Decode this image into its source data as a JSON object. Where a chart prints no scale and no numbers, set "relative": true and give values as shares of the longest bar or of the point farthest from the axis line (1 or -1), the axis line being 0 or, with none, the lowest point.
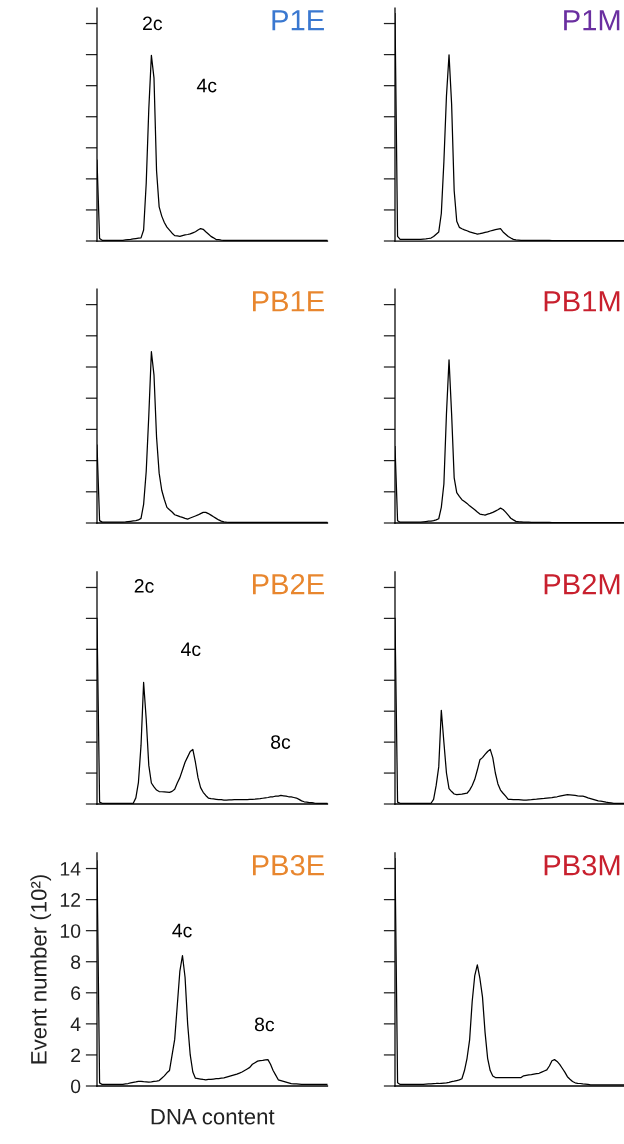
{
  "chart_data": [
    {
      "type": "line",
      "title": "P1E",
      "color": "#000000",
      "annotations": [
        "2c",
        "4c"
      ],
      "relative": true,
      "tick_labels": false,
      "categories": [
        null,
        null,
        null,
        null,
        null,
        null,
        null,
        null,
        null,
        null,
        null,
        null,
        null,
        null,
        null,
        null,
        null,
        null,
        null,
        null,
        null,
        null,
        null,
        null,
        null,
        null,
        null,
        null,
        null,
        null,
        null,
        null,
        null,
        null,
        null,
        null,
        null,
        null,
        null,
        null,
        null,
        null,
        null,
        null,
        null,
        null,
        null,
        null,
        null,
        null,
        null,
        null,
        null,
        null,
        null,
        null,
        null,
        null,
        null,
        null,
        null,
        null,
        null,
        null,
        null,
        null,
        null,
        null,
        null,
        null,
        null,
        null,
        null,
        null,
        null,
        null,
        null,
        null,
        null,
        null,
        null,
        null,
        null,
        null,
        null,
        null,
        null,
        null,
        null,
        null
      ],
      "values": [
        0.435,
        0.013,
        0.004,
        0.004,
        0.004,
        0.004,
        0.004,
        0.004,
        0.004,
        0.004,
        0.004,
        0.006,
        0.008,
        0.009,
        0.011,
        0.013,
        0.015,
        0.017,
        0.059,
        0.31,
        0.711,
        1,
        0.879,
        0.377,
        0.184,
        0.134,
        0.1,
        0.075,
        0.059,
        0.042,
        0.029,
        0.027,
        0.025,
        0.029,
        0.033,
        0.035,
        0.038,
        0.044,
        0.05,
        0.059,
        0.067,
        0.063,
        0.05,
        0.038,
        0.025,
        0.017,
        0.008,
        0.007,
        0.005,
        0.004,
        0.003,
        0.003,
        0.003,
        0.003,
        0.003,
        0.003,
        0.003,
        0.003,
        0.003,
        0.003,
        0.003,
        0.003,
        0.003,
        0.003,
        0.003,
        0.003,
        0.003,
        0.003,
        0.003,
        0.003,
        0.003,
        0.003,
        0.003,
        0.003,
        0.003,
        0.003,
        0.003,
        0.003,
        0.003,
        0.003,
        0.003,
        0.003,
        0.003,
        0.003,
        0.003,
        0.003,
        0.003,
        0.003,
        0.003,
        0.003
      ]
    },
    {
      "type": "line",
      "title": "P1M",
      "color": "#000000",
      "relative": true,
      "tick_labels": false,
      "categories": [
        null,
        null,
        null,
        null,
        null,
        null,
        null,
        null,
        null,
        null,
        null,
        null,
        null,
        null,
        null,
        null,
        null,
        null,
        null,
        null,
        null,
        null,
        null,
        null,
        null,
        null,
        null,
        null,
        null,
        null,
        null,
        null,
        null,
        null,
        null,
        null,
        null,
        null,
        null,
        null,
        null,
        null,
        null,
        null,
        null,
        null,
        null,
        null,
        null,
        null,
        null,
        null,
        null,
        null,
        null,
        null,
        null,
        null,
        null,
        null,
        null,
        null,
        null,
        null,
        null,
        null,
        null,
        null,
        null,
        null,
        null,
        null,
        null,
        null,
        null,
        null,
        null,
        null,
        null,
        null,
        null,
        null,
        null,
        null,
        null,
        null,
        null,
        null,
        null,
        null
      ],
      "values": [
        1,
        0.02,
        0.007,
        0.007,
        0.007,
        0.007,
        0.007,
        0.007,
        0.007,
        0.007,
        0.007,
        0.008,
        0.009,
        0.011,
        0.013,
        0.02,
        0.03,
        0.04,
        0.121,
        0.349,
        0.638,
        0.819,
        0.604,
        0.221,
        0.087,
        0.06,
        0.054,
        0.049,
        0.045,
        0.04,
        0.037,
        0.034,
        0.03,
        0.032,
        0.035,
        0.038,
        0.04,
        0.044,
        0.047,
        0.05,
        0.052,
        0.054,
        0.04,
        0.03,
        0.02,
        0.013,
        0.007,
        0.005,
        0.004,
        0.003,
        0.003,
        0.003,
        0.003,
        0.003,
        0.003,
        0.003,
        0.003,
        0.003,
        0.003,
        0.003,
        0.003,
        0.002,
        0.002,
        0.002,
        0.002,
        0.002,
        0.002,
        0.002,
        0.002,
        0.002,
        0.002,
        0.002,
        0.002,
        0.002,
        0.002,
        0.002,
        0.002,
        0.002,
        0.002,
        0.002,
        0.002,
        0.002,
        0.002,
        0.002,
        0.002,
        0.002,
        0.002,
        0.002,
        0.002,
        0.002
      ]
    },
    {
      "type": "line",
      "title": "PB1E",
      "color": "#000000",
      "relative": true,
      "tick_labels": false,
      "categories": [
        null,
        null,
        null,
        null,
        null,
        null,
        null,
        null,
        null,
        null,
        null,
        null,
        null,
        null,
        null,
        null,
        null,
        null,
        null,
        null,
        null,
        null,
        null,
        null,
        null,
        null,
        null,
        null,
        null,
        null,
        null,
        null,
        null,
        null,
        null,
        null,
        null,
        null,
        null,
        null,
        null,
        null,
        null,
        null,
        null,
        null,
        null,
        null,
        null,
        null,
        null,
        null,
        null,
        null,
        null,
        null,
        null,
        null,
        null,
        null,
        null,
        null,
        null,
        null,
        null,
        null,
        null,
        null,
        null,
        null,
        null,
        null,
        null,
        null,
        null,
        null,
        null,
        null,
        null,
        null,
        null,
        null,
        null,
        null,
        null,
        null,
        null,
        null,
        null,
        null
      ],
      "values": [
        0.455,
        0.014,
        0.005,
        0.005,
        0.005,
        0.005,
        0.005,
        0.005,
        0.005,
        0.005,
        0.005,
        0.006,
        0.008,
        0.01,
        0.012,
        0.014,
        0.018,
        0.027,
        0.109,
        0.301,
        0.628,
        1,
        0.865,
        0.501,
        0.291,
        0.191,
        0.137,
        0.091,
        0.077,
        0.064,
        0.048,
        0.043,
        0.037,
        0.033,
        0.027,
        0.023,
        0.029,
        0.035,
        0.041,
        0.047,
        0.055,
        0.062,
        0.062,
        0.055,
        0.046,
        0.036,
        0.027,
        0.018,
        0.011,
        0.007,
        0.005,
        0.004,
        0.004,
        0.004,
        0.004,
        0.004,
        0.004,
        0.004,
        0.004,
        0.004,
        0.004,
        0.003,
        0.003,
        0.003,
        0.003,
        0.003,
        0.003,
        0.003,
        0.003,
        0.003,
        0.003,
        0.003,
        0.003,
        0.003,
        0.003,
        0.003,
        0.003,
        0.003,
        0.003,
        0.003,
        0.003,
        0.003,
        0.003,
        0.003,
        0.003,
        0.003,
        0.003,
        0.003,
        0.003,
        0.003
      ]
    },
    {
      "type": "line",
      "title": "PB1M",
      "color": "#000000",
      "relative": true,
      "tick_labels": false,
      "categories": [
        null,
        null,
        null,
        null,
        null,
        null,
        null,
        null,
        null,
        null,
        null,
        null,
        null,
        null,
        null,
        null,
        null,
        null,
        null,
        null,
        null,
        null,
        null,
        null,
        null,
        null,
        null,
        null,
        null,
        null,
        null,
        null,
        null,
        null,
        null,
        null,
        null,
        null,
        null,
        null,
        null,
        null,
        null,
        null,
        null,
        null,
        null,
        null,
        null,
        null,
        null,
        null,
        null,
        null,
        null,
        null,
        null,
        null,
        null,
        null,
        null,
        null,
        null,
        null,
        null,
        null,
        null,
        null,
        null,
        null,
        null,
        null,
        null,
        null,
        null,
        null,
        null,
        null,
        null,
        null,
        null,
        null,
        null,
        null,
        null,
        null,
        null,
        null,
        null,
        null
      ],
      "values": [
        0.468,
        0.014,
        0.005,
        0.005,
        0.005,
        0.005,
        0.005,
        0.005,
        0.005,
        0.005,
        0.005,
        0.007,
        0.009,
        0.011,
        0.012,
        0.014,
        0.019,
        0.026,
        0.096,
        0.239,
        0.669,
        1,
        0.669,
        0.277,
        0.186,
        0.163,
        0.143,
        0.132,
        0.12,
        0.105,
        0.093,
        0.081,
        0.067,
        0.055,
        0.052,
        0.048,
        0.054,
        0.059,
        0.065,
        0.073,
        0.081,
        0.091,
        0.083,
        0.067,
        0.048,
        0.029,
        0.019,
        0.01,
        0.008,
        0.007,
        0.006,
        0.005,
        0.005,
        0.004,
        0.004,
        0.004,
        0.004,
        0.004,
        0.004,
        0.004,
        0.004,
        0.003,
        0.003,
        0.003,
        0.003,
        0.003,
        0.003,
        0.003,
        0.003,
        0.003,
        0.003,
        0.003,
        0.003,
        0.003,
        0.003,
        0.003,
        0.003,
        0.003,
        0.003,
        0.003,
        0.003,
        0.003,
        0.003,
        0.003,
        0.003,
        0.003,
        0.003,
        0.003,
        0.003,
        0.003
      ]
    },
    {
      "type": "line",
      "title": "PB2E",
      "color": "#000000",
      "annotations": [
        "2c",
        "4c",
        "8c"
      ],
      "relative": true,
      "tick_labels": false,
      "categories": [
        null,
        null,
        null,
        null,
        null,
        null,
        null,
        null,
        null,
        null,
        null,
        null,
        null,
        null,
        null,
        null,
        null,
        null,
        null,
        null,
        null,
        null,
        null,
        null,
        null,
        null,
        null,
        null,
        null,
        null,
        null,
        null,
        null,
        null,
        null,
        null,
        null,
        null,
        null,
        null,
        null,
        null,
        null,
        null,
        null,
        null,
        null,
        null,
        null,
        null,
        null,
        null,
        null,
        null,
        null,
        null,
        null,
        null,
        null,
        null,
        null,
        null,
        null,
        null,
        null,
        null,
        null,
        null,
        null,
        null,
        null,
        null,
        null,
        null,
        null,
        null,
        null,
        null,
        null,
        null,
        null,
        null,
        null,
        null,
        null,
        null,
        null,
        null,
        null,
        null
      ],
      "values": [
        1,
        0.01,
        0.004,
        0.004,
        0.004,
        0.004,
        0.004,
        0.004,
        0.004,
        0.004,
        0.004,
        0.004,
        0.004,
        0.004,
        0.004,
        0.033,
        0.117,
        0.317,
        0.655,
        0.458,
        0.208,
        0.113,
        0.092,
        0.075,
        0.067,
        0.066,
        0.065,
        0.064,
        0.063,
        0.068,
        0.079,
        0.113,
        0.142,
        0.183,
        0.225,
        0.254,
        0.283,
        0.294,
        0.225,
        0.142,
        0.088,
        0.063,
        0.046,
        0.032,
        0.029,
        0.027,
        0.025,
        0.023,
        0.023,
        0.021,
        0.021,
        0.022,
        0.022,
        0.023,
        0.023,
        0.023,
        0.023,
        0.024,
        0.024,
        0.025,
        0.025,
        0.026,
        0.028,
        0.029,
        0.031,
        0.033,
        0.035,
        0.038,
        0.039,
        0.042,
        0.043,
        0.046,
        0.044,
        0.042,
        0.039,
        0.038,
        0.035,
        0.032,
        0.025,
        0.017,
        0.012,
        0.01,
        0.008,
        0.007,
        0.005,
        0.004,
        0.004,
        0.004,
        0.004,
        0.004
      ]
    },
    {
      "type": "line",
      "title": "PB2M",
      "color": "#000000",
      "relative": true,
      "tick_labels": false,
      "categories": [
        null,
        null,
        null,
        null,
        null,
        null,
        null,
        null,
        null,
        null,
        null,
        null,
        null,
        null,
        null,
        null,
        null,
        null,
        null,
        null,
        null,
        null,
        null,
        null,
        null,
        null,
        null,
        null,
        null,
        null,
        null,
        null,
        null,
        null,
        null,
        null,
        null,
        null,
        null,
        null,
        null,
        null,
        null,
        null,
        null,
        null,
        null,
        null,
        null,
        null,
        null,
        null,
        null,
        null,
        null,
        null,
        null,
        null,
        null,
        null,
        null,
        null,
        null,
        null,
        null,
        null,
        null,
        null,
        null,
        null,
        null,
        null,
        null,
        null,
        null,
        null,
        null,
        null,
        null,
        null,
        null,
        null,
        null,
        null,
        null,
        null,
        null,
        null,
        null,
        null
      ],
      "values": [
        1,
        0.01,
        0.004,
        0.004,
        0.004,
        0.004,
        0.004,
        0.004,
        0.004,
        0.004,
        0.004,
        0.004,
        0.004,
        0.004,
        0.004,
        0.025,
        0.1,
        0.2,
        0.505,
        0.333,
        0.167,
        0.083,
        0.067,
        0.054,
        0.05,
        0.052,
        0.053,
        0.056,
        0.058,
        0.075,
        0.1,
        0.133,
        0.183,
        0.238,
        0.25,
        0.267,
        0.283,
        0.294,
        0.25,
        0.167,
        0.108,
        0.075,
        0.058,
        0.042,
        0.025,
        0.025,
        0.024,
        0.023,
        0.023,
        0.022,
        0.021,
        0.021,
        0.022,
        0.023,
        0.025,
        0.026,
        0.028,
        0.029,
        0.03,
        0.032,
        0.033,
        0.034,
        0.037,
        0.039,
        0.042,
        0.045,
        0.048,
        0.05,
        0.049,
        0.048,
        0.046,
        0.044,
        0.043,
        0.042,
        0.038,
        0.033,
        0.029,
        0.025,
        0.021,
        0.017,
        0.015,
        0.013,
        0.01,
        0.008,
        0.006,
        0.004,
        0.004,
        0.004,
        0.004,
        0.004
      ]
    },
    {
      "type": "line",
      "title": "PB3E",
      "color": "#000000",
      "xlabel": "DNA content",
      "ylabel": "Event number (10²)",
      "annotations": [
        "4c",
        "8c"
      ],
      "categories": [
        null,
        null,
        null,
        null,
        null,
        null,
        null,
        null,
        null,
        null,
        null,
        null,
        null,
        null,
        null,
        null,
        null,
        null,
        null,
        null,
        null,
        null,
        null,
        null,
        null,
        null,
        null,
        null,
        null,
        null,
        null,
        null,
        null,
        null,
        null,
        null,
        null,
        null,
        null,
        null,
        null,
        null,
        null,
        null,
        null,
        null,
        null,
        null,
        null,
        null,
        null,
        null,
        null,
        null,
        null,
        null,
        null,
        null,
        null,
        null,
        null,
        null,
        null,
        null,
        null,
        null,
        null,
        null,
        null,
        null,
        null,
        null,
        null,
        null,
        null,
        null,
        null,
        null,
        null,
        null,
        null,
        null,
        null,
        null,
        null,
        null,
        null,
        null,
        null,
        null
      ],
      "values": [
        14.5,
        0.2,
        0.1,
        0.1,
        0.1,
        0.1,
        0.1,
        0.1,
        0.1,
        0.1,
        0.1,
        0.13,
        0.16,
        0.2,
        0.23,
        0.26,
        0.3,
        0.3,
        0.28,
        0.27,
        0.25,
        0.27,
        0.3,
        0.32,
        0.35,
        0.5,
        0.65,
        0.85,
        1.0,
        2.0,
        3.0,
        5.2,
        7.4,
        8.4,
        7.0,
        4.0,
        2.0,
        0.9,
        0.5,
        0.48,
        0.45,
        0.42,
        0.4,
        0.42,
        0.43,
        0.45,
        0.47,
        0.48,
        0.5,
        0.52,
        0.57,
        0.62,
        0.67,
        0.72,
        0.77,
        0.83,
        0.9,
        1.0,
        1.1,
        1.2,
        1.4,
        1.5,
        1.6,
        1.63,
        1.65,
        1.68,
        1.7,
        1.4,
        1.0,
        0.7,
        0.4,
        0.35,
        0.3,
        0.25,
        0.2,
        0.15,
        0.14,
        0.13,
        0.12,
        0.11,
        0.1,
        0.1,
        0.1,
        0.1,
        0.1,
        0.1,
        0.1,
        0.1,
        0.1,
        0.1
      ],
      "ylim": [
        0,
        15
      ],
      "yticks": [
        0,
        2,
        4,
        6,
        8,
        10,
        12,
        14
      ],
      "tick_labels": "y"
    },
    {
      "type": "line",
      "title": "PB3M",
      "color": "#000000",
      "relative": true,
      "tick_labels": false,
      "categories": [
        null,
        null,
        null,
        null,
        null,
        null,
        null,
        null,
        null,
        null,
        null,
        null,
        null,
        null,
        null,
        null,
        null,
        null,
        null,
        null,
        null,
        null,
        null,
        null,
        null,
        null,
        null,
        null,
        null,
        null,
        null,
        null,
        null,
        null,
        null,
        null,
        null,
        null,
        null,
        null,
        null,
        null,
        null,
        null,
        null,
        null,
        null,
        null,
        null,
        null,
        null,
        null,
        null,
        null,
        null,
        null,
        null,
        null,
        null,
        null,
        null,
        null,
        null,
        null,
        null,
        null,
        null,
        null,
        null,
        null,
        null,
        null,
        null,
        null,
        null,
        null,
        null,
        null,
        null,
        null,
        null,
        null,
        null,
        null,
        null,
        null,
        null,
        null,
        null,
        null
      ],
      "values": [
        1,
        0.014,
        0.007,
        0.007,
        0.007,
        0.007,
        0.007,
        0.007,
        0.007,
        0.007,
        0.007,
        0.007,
        0.008,
        0.009,
        0.009,
        0.01,
        0.011,
        0.011,
        0.012,
        0.013,
        0.014,
        0.016,
        0.019,
        0.021,
        0.024,
        0.027,
        0.032,
        0.068,
        0.122,
        0.203,
        0.372,
        0.486,
        0.533,
        0.473,
        0.392,
        0.236,
        0.122,
        0.068,
        0.044,
        0.037,
        0.037,
        0.037,
        0.037,
        0.037,
        0.037,
        0.037,
        0.037,
        0.037,
        0.037,
        0.037,
        0.045,
        0.047,
        0.049,
        0.05,
        0.052,
        0.054,
        0.056,
        0.061,
        0.066,
        0.071,
        0.088,
        0.111,
        0.116,
        0.108,
        0.095,
        0.078,
        0.061,
        0.041,
        0.03,
        0.02,
        0.014,
        0.012,
        0.011,
        0.009,
        0.008,
        0.007,
        0.005,
        0.005,
        0.005,
        0.005,
        0.005,
        0.005,
        0.005,
        0.005,
        0.005,
        0.005,
        0.005,
        0.005,
        0.005,
        0.005
      ]
    }
  ]
}
